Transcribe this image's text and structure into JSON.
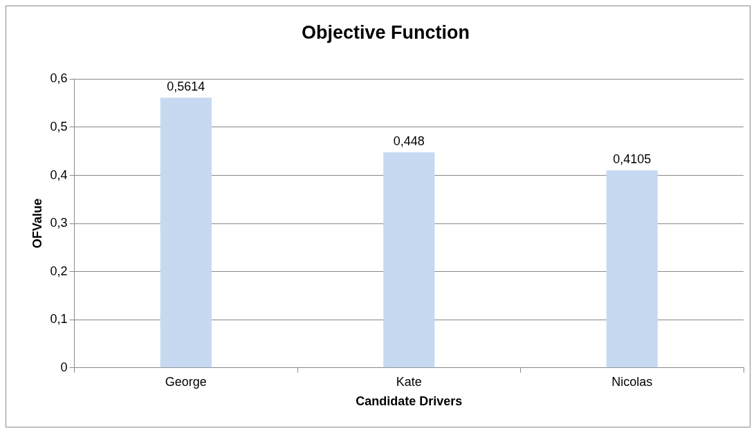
{
  "chart_data": {
    "type": "bar",
    "title": "Objective Function",
    "xlabel": "Candidate Drivers",
    "ylabel": "OFValue",
    "categories": [
      "George",
      "Kate",
      "Nicolas"
    ],
    "values": [
      0.5614,
      0.448,
      0.4105
    ],
    "value_labels": [
      "0,5614",
      "0,448",
      "0,4105"
    ],
    "color": "#c6d9f1",
    "ylim": [
      0,
      0.6
    ],
    "yticks": [
      {
        "value": 0,
        "label": "0"
      },
      {
        "value": 0.1,
        "label": "0,1"
      },
      {
        "value": 0.2,
        "label": "0,2"
      },
      {
        "value": 0.3,
        "label": "0,3"
      },
      {
        "value": 0.4,
        "label": "0,4"
      },
      {
        "value": 0.5,
        "label": "0,5"
      },
      {
        "value": 0.6,
        "label": "0,6"
      }
    ],
    "grid": "y",
    "legend": false
  }
}
